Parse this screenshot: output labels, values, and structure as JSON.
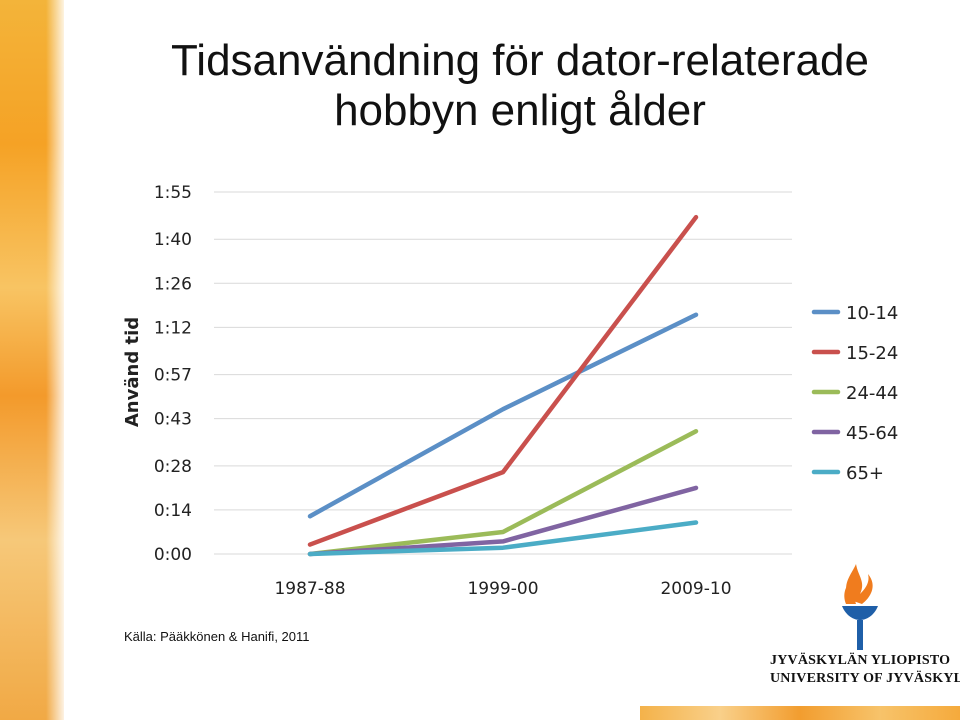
{
  "slide": {
    "title_line1": "Tidsanvändning för dator-relaterade",
    "title_line2": "hobbyn enligt ålder",
    "source": "Källa: Pääkkönen & Hanifi, 2011",
    "logo_line1": "JYVÄSKYLÄN YLIOPISTO",
    "logo_line2": "UNIVERSITY OF JYVÄSKYLÄ"
  },
  "colors": {
    "10-14": "#5b8fc6",
    "15-24": "#c9504d",
    "24-44": "#9bbb59",
    "45-64": "#8064a2",
    "65+": "#4bacc6",
    "grid": "#d9d9d9",
    "logo_orange": "#f07c1e",
    "logo_blue": "#1f5fa8"
  },
  "chart_data": {
    "type": "line",
    "title": "",
    "xlabel": "",
    "ylabel": "Använd tid",
    "categories": [
      "1987-88",
      "1999-00",
      "2009-10"
    ],
    "y_unit": "minutes",
    "ylim": [
      0,
      115
    ],
    "y_ticks": [
      0,
      14,
      28,
      43,
      57,
      72,
      86,
      100,
      115
    ],
    "y_tick_labels": [
      "0:00",
      "0:14",
      "0:28",
      "0:43",
      "0:57",
      "1:12",
      "1:26",
      "1:40",
      "1:55"
    ],
    "grid": "horizontal",
    "legend": "right",
    "series": [
      {
        "name": "10-14",
        "values": [
          12,
          46,
          76
        ]
      },
      {
        "name": "15-24",
        "values": [
          3,
          26,
          107
        ]
      },
      {
        "name": "24-44",
        "values": [
          0,
          7,
          39
        ]
      },
      {
        "name": "45-64",
        "values": [
          0,
          4,
          21
        ]
      },
      {
        "name": "65+",
        "values": [
          0,
          2,
          10
        ]
      }
    ]
  }
}
